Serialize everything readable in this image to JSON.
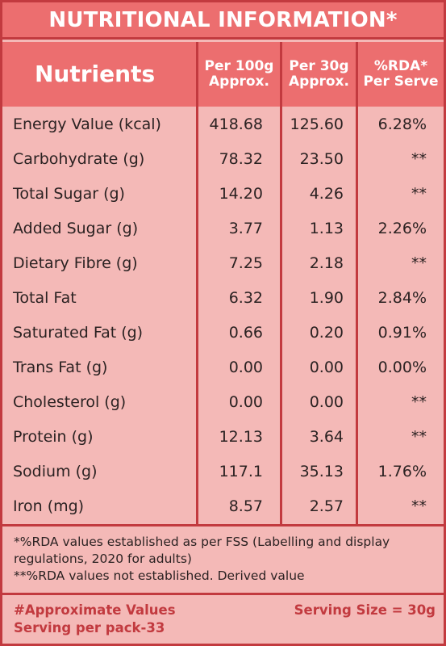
{
  "title": "NUTRITIONAL INFORMATION*",
  "headers": {
    "nutrients": "Nutrients",
    "per100_line1": "Per 100g",
    "per100_line2": "Approx.",
    "per30_line1": "Per 30g",
    "per30_line2": "Approx.",
    "rda_line1": "%RDA*",
    "rda_line2": "Per Serve"
  },
  "rows": [
    {
      "name": "Energy Value (kcal)",
      "per100": "418.68",
      "per30": "125.60",
      "rda": "6.28%"
    },
    {
      "name": "Carbohydrate (g)",
      "per100": "78.32",
      "per30": "23.50",
      "rda": "**"
    },
    {
      "name": "Total Sugar (g)",
      "per100": "14.20",
      "per30": "4.26",
      "rda": "**"
    },
    {
      "name": "Added Sugar (g)",
      "per100": "3.77",
      "per30": "1.13",
      "rda": "2.26%"
    },
    {
      "name": "Dietary Fibre (g)",
      "per100": "7.25",
      "per30": "2.18",
      "rda": "**"
    },
    {
      "name": "Total Fat",
      "per100": "6.32",
      "per30": "1.90",
      "rda": "2.84%"
    },
    {
      "name": "Saturated Fat (g)",
      "per100": "0.66",
      "per30": "0.20",
      "rda": "0.91%"
    },
    {
      "name": "Trans Fat (g)",
      "per100": "0.00",
      "per30": "0.00",
      "rda": "0.00%"
    },
    {
      "name": "Cholesterol (g)",
      "per100": "0.00",
      "per30": "0.00",
      "rda": "**"
    },
    {
      "name": "Protein (g)",
      "per100": "12.13",
      "per30": "3.64",
      "rda": "**"
    },
    {
      "name": "Sodium (g)",
      "per100": "117.1",
      "per30": "35.13",
      "rda": "1.76%"
    },
    {
      "name": "Iron (mg)",
      "per100": "8.57",
      "per30": "2.57",
      "rda": "**"
    }
  ],
  "footnotes": {
    "line1": "*%RDA values established as per FSS (Labelling and display",
    "line2": "regulations, 2020 for adults)",
    "line3": "**%RDA values not established. Derived value"
  },
  "bottom": {
    "approx": "#Approximate Values",
    "serving_per_pack": "Serving per pack-33",
    "serving_size": "Serving Size = 30g"
  },
  "colors": {
    "accent": "#ec6e6f",
    "border": "#c23a3f",
    "background": "#f4b9b7"
  }
}
